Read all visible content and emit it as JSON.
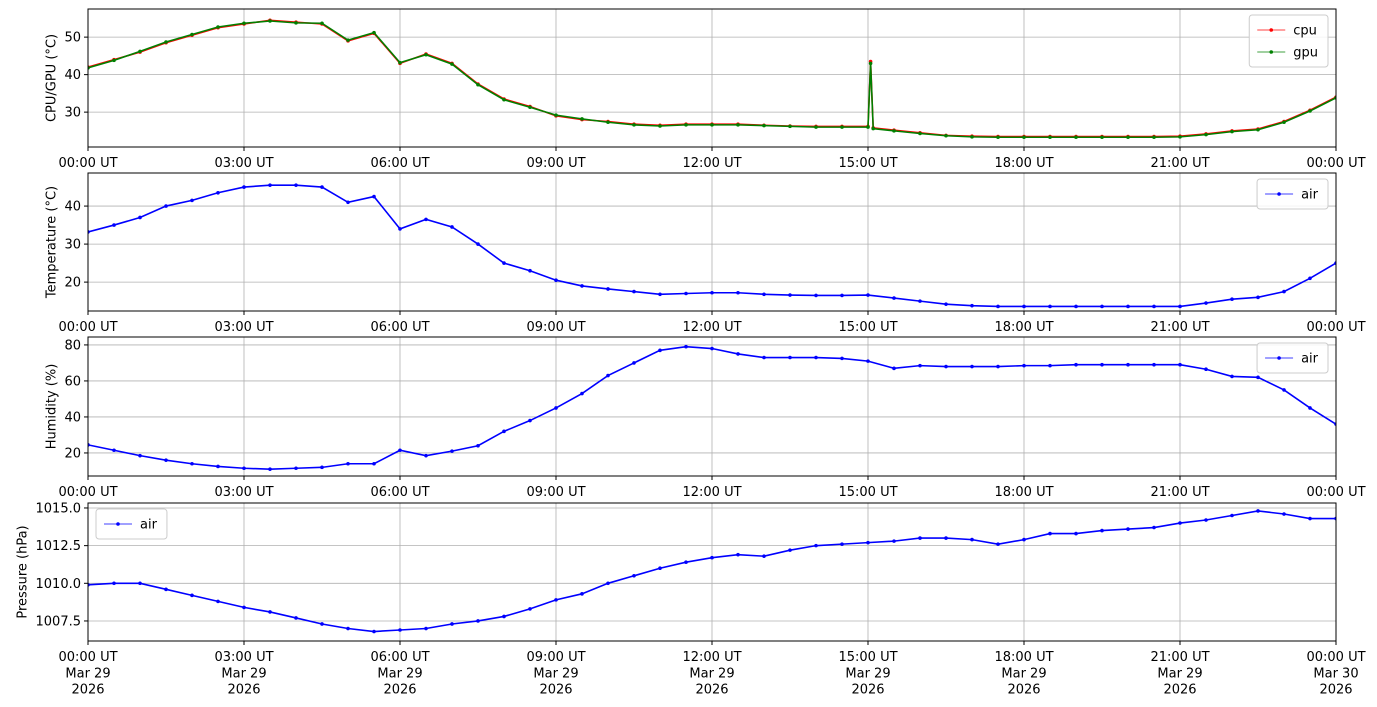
{
  "chart_data": [
    {
      "type": "line",
      "ylabel": "CPU/GPU (°C)",
      "legend": "upper right",
      "grid": true,
      "x": [
        0,
        0.5,
        1,
        1.5,
        2,
        2.5,
        3,
        3.5,
        4,
        4.5,
        5,
        5.5,
        6,
        6.5,
        7,
        7.5,
        8,
        8.5,
        9,
        9.5,
        10,
        10.5,
        11,
        11.5,
        12,
        12.5,
        13,
        13.5,
        14,
        14.5,
        15,
        15.05,
        15.1,
        15.5,
        16,
        16.5,
        17,
        17.5,
        18,
        18.5,
        19,
        19.5,
        20,
        20.5,
        21,
        21.5,
        22,
        22.5,
        23,
        23.5,
        24
      ],
      "xlim": [
        0,
        24
      ],
      "xticks": [
        {
          "value": 0,
          "label": "00:00 UT"
        },
        {
          "value": 3,
          "label": "03:00 UT"
        },
        {
          "value": 6,
          "label": "06:00 UT"
        },
        {
          "value": 9,
          "label": "09:00 UT"
        },
        {
          "value": 12,
          "label": "12:00 UT"
        },
        {
          "value": 15,
          "label": "15:00 UT"
        },
        {
          "value": 18,
          "label": "18:00 UT"
        },
        {
          "value": 21,
          "label": "21:00 UT"
        },
        {
          "value": 24,
          "label": "00:00 UT"
        }
      ],
      "ylim": [
        20.7,
        57.5
      ],
      "yticks": [
        30,
        40,
        50
      ],
      "series": [
        {
          "name": "cpu",
          "color": "#ff0000",
          "values": [
            42,
            44,
            46,
            48.5,
            50.5,
            52.5,
            53.5,
            54.5,
            54,
            53.5,
            49,
            51,
            43,
            45.5,
            43,
            37.5,
            33.5,
            31.5,
            29,
            28,
            27.5,
            26.8,
            26.5,
            26.8,
            26.8,
            26.8,
            26.5,
            26.3,
            26.2,
            26.2,
            26.2,
            43.5,
            25.8,
            25.2,
            24.5,
            23.8,
            23.6,
            23.5,
            23.5,
            23.5,
            23.5,
            23.5,
            23.5,
            23.5,
            23.6,
            24.2,
            25,
            25.5,
            27.5,
            30.5,
            34
          ]
        },
        {
          "name": "gpu",
          "color": "#008000",
          "values": [
            41.8,
            43.8,
            46.2,
            48.7,
            50.7,
            52.7,
            53.7,
            54.3,
            53.8,
            53.7,
            49.2,
            51.2,
            43.2,
            45.3,
            42.8,
            37.3,
            33.3,
            31.3,
            29.2,
            28.2,
            27.3,
            26.6,
            26.3,
            26.6,
            26.6,
            26.6,
            26.4,
            26.2,
            26,
            26,
            26,
            43,
            25.6,
            25,
            24.3,
            23.7,
            23.4,
            23.3,
            23.3,
            23.3,
            23.3,
            23.3,
            23.3,
            23.3,
            23.4,
            24,
            24.8,
            25.3,
            27.3,
            30.3,
            33.8
          ]
        }
      ]
    },
    {
      "type": "line",
      "ylabel": "Temperature (°C)",
      "legend": "upper right",
      "grid": true,
      "x": [
        0,
        0.5,
        1,
        1.5,
        2,
        2.5,
        3,
        3.5,
        4,
        4.5,
        5,
        5.5,
        6,
        6.5,
        7,
        7.5,
        8,
        8.5,
        9,
        9.5,
        10,
        10.5,
        11,
        11.5,
        12,
        12.5,
        13,
        13.5,
        14,
        14.5,
        15,
        15.5,
        16,
        16.5,
        17,
        17.5,
        18,
        18.5,
        19,
        19.5,
        20,
        20.5,
        21,
        21.5,
        22,
        22.5,
        23,
        23.5,
        24
      ],
      "xlim": [
        0,
        24
      ],
      "xticks": [
        {
          "value": 0,
          "label": "00:00 UT"
        },
        {
          "value": 3,
          "label": "03:00 UT"
        },
        {
          "value": 6,
          "label": "06:00 UT"
        },
        {
          "value": 9,
          "label": "09:00 UT"
        },
        {
          "value": 12,
          "label": "12:00 UT"
        },
        {
          "value": 15,
          "label": "15:00 UT"
        },
        {
          "value": 18,
          "label": "18:00 UT"
        },
        {
          "value": 21,
          "label": "21:00 UT"
        },
        {
          "value": 24,
          "label": "00:00 UT"
        }
      ],
      "ylim": [
        12.4,
        48.7
      ],
      "yticks": [
        20,
        30,
        40
      ],
      "series": [
        {
          "name": "air",
          "color": "#0000ff",
          "values": [
            33.2,
            35,
            37,
            40,
            41.5,
            43.5,
            45,
            45.5,
            45.5,
            45,
            41,
            42.5,
            34,
            36.5,
            34.5,
            30,
            25,
            23,
            20.5,
            19,
            18.2,
            17.5,
            16.8,
            17,
            17.2,
            17.2,
            16.8,
            16.6,
            16.5,
            16.5,
            16.6,
            15.8,
            15,
            14.2,
            13.8,
            13.6,
            13.6,
            13.6,
            13.6,
            13.6,
            13.6,
            13.6,
            13.6,
            14.5,
            15.5,
            16,
            17.5,
            21,
            25
          ]
        }
      ]
    },
    {
      "type": "line",
      "ylabel": "Humidity (%)",
      "legend": "upper right",
      "grid": true,
      "x": [
        0,
        0.5,
        1,
        1.5,
        2,
        2.5,
        3,
        3.5,
        4,
        4.5,
        5,
        5.5,
        6,
        6.5,
        7,
        7.5,
        8,
        8.5,
        9,
        9.5,
        10,
        10.5,
        11,
        11.5,
        12,
        12.5,
        13,
        13.5,
        14,
        14.5,
        15,
        15.5,
        16,
        16.5,
        17,
        17.5,
        18,
        18.5,
        19,
        19.5,
        20,
        20.5,
        21,
        21.5,
        22,
        22.5,
        23,
        23.5,
        24
      ],
      "xlim": [
        0,
        24
      ],
      "xticks": [
        {
          "value": 0,
          "label": "00:00 UT"
        },
        {
          "value": 3,
          "label": "03:00 UT"
        },
        {
          "value": 6,
          "label": "06:00 UT"
        },
        {
          "value": 9,
          "label": "09:00 UT"
        },
        {
          "value": 12,
          "label": "12:00 UT"
        },
        {
          "value": 15,
          "label": "15:00 UT"
        },
        {
          "value": 18,
          "label": "18:00 UT"
        },
        {
          "value": 21,
          "label": "21:00 UT"
        },
        {
          "value": 24,
          "label": "00:00 UT"
        }
      ],
      "ylim": [
        7.2,
        84.4
      ],
      "yticks": [
        20,
        40,
        60,
        80
      ],
      "series": [
        {
          "name": "air",
          "color": "#0000ff",
          "values": [
            24.5,
            21.5,
            18.5,
            16,
            14,
            12.5,
            11.5,
            11,
            11.5,
            12,
            14,
            14,
            21.5,
            18.5,
            21,
            24,
            32,
            38,
            45,
            53,
            63,
            70,
            77,
            79,
            78,
            75,
            73,
            73,
            73,
            72.5,
            71,
            67,
            68.5,
            68,
            68,
            68,
            68.5,
            68.5,
            69,
            69,
            69,
            69,
            69,
            66.5,
            62.5,
            62,
            55,
            45,
            36
          ]
        }
      ]
    },
    {
      "type": "line",
      "ylabel": "Pressure (hPa)",
      "legend": "upper left",
      "grid": true,
      "x": [
        0,
        0.5,
        1,
        1.5,
        2,
        2.5,
        3,
        3.5,
        4,
        4.5,
        5,
        5.5,
        6,
        6.5,
        7,
        7.5,
        8,
        8.5,
        9,
        9.5,
        10,
        10.5,
        11,
        11.5,
        12,
        12.5,
        13,
        13.5,
        14,
        14.5,
        15,
        15.5,
        16,
        16.5,
        17,
        17.5,
        18,
        18.5,
        19,
        19.5,
        20,
        20.5,
        21,
        21.5,
        22,
        22.5,
        23,
        23.5,
        24
      ],
      "xlim": [
        0,
        24
      ],
      "xticks": [
        {
          "value": 0,
          "label": "00:00 UT\nMar 29\n2026"
        },
        {
          "value": 3,
          "label": "03:00 UT\nMar 29\n2026"
        },
        {
          "value": 6,
          "label": "06:00 UT\nMar 29\n2026"
        },
        {
          "value": 9,
          "label": "09:00 UT\nMar 29\n2026"
        },
        {
          "value": 12,
          "label": "12:00 UT\nMar 29\n2026"
        },
        {
          "value": 15,
          "label": "15:00 UT\nMar 29\n2026"
        },
        {
          "value": 18,
          "label": "18:00 UT\nMar 29\n2026"
        },
        {
          "value": 21,
          "label": "21:00 UT\nMar 29\n2026"
        },
        {
          "value": 24,
          "label": "00:00 UT\nMar 30\n2026"
        }
      ],
      "ylim": [
        1006.17,
        1015.33
      ],
      "yticks": [
        1007.5,
        {
          "value": 1010,
          "label": "1010.0"
        },
        1012.5,
        {
          "value": 1015,
          "label": "1015.0"
        }
      ],
      "series": [
        {
          "name": "air",
          "color": "#0000ff",
          "values": [
            1009.9,
            1010,
            1010,
            1009.6,
            1009.2,
            1008.8,
            1008.4,
            1008.1,
            1007.7,
            1007.3,
            1007,
            1006.8,
            1006.9,
            1007,
            1007.3,
            1007.5,
            1007.8,
            1008.3,
            1008.9,
            1009.3,
            1010,
            1010.5,
            1011,
            1011.4,
            1011.7,
            1011.9,
            1011.8,
            1012.2,
            1012.5,
            1012.6,
            1012.7,
            1012.8,
            1013,
            1013,
            1012.9,
            1012.6,
            1012.9,
            1013.3,
            1013.3,
            1013.5,
            1013.6,
            1013.7,
            1014,
            1014.2,
            1014.5,
            1014.8,
            1014.6,
            1014.3,
            1014.3
          ]
        }
      ]
    }
  ]
}
